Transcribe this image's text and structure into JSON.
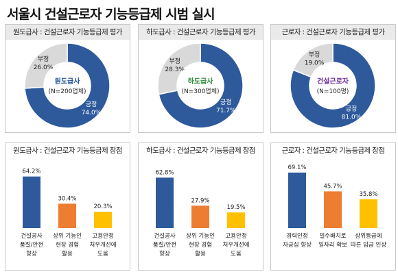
{
  "title": "서울시 건설근로자 기능등급제 시범 실시",
  "colors": {
    "positive": "#2e5a9c",
    "negative": "#d9d9d9",
    "bar_blue": "#2e5a9c",
    "bar_orange": "#ed7d31",
    "bar_yellow": "#ffc000",
    "center_label_0": "#1f4e9c",
    "center_label_1": "#2e8b3c",
    "center_label_2": "#7030a0"
  },
  "chart_data": [
    {
      "type": "pie",
      "title": "원도급사 : 건설근로자 기능등급제 평가",
      "center_label": "원도급사",
      "center_sub": "(N=200업체)",
      "slices": [
        {
          "label": "긍정",
          "value": 74.0,
          "value_label": "74.0%"
        },
        {
          "label": "부정",
          "value": 26.0,
          "value_label": "26.0%"
        }
      ]
    },
    {
      "type": "pie",
      "title": "하도급사 : 건설근로자 기능등급제 평가",
      "center_label": "하도급사",
      "center_sub": "(N=300업체)",
      "slices": [
        {
          "label": "긍정",
          "value": 71.7,
          "value_label": "71.7%"
        },
        {
          "label": "부정",
          "value": 28.3,
          "value_label": "28.3%"
        }
      ]
    },
    {
      "type": "pie",
      "title": "근로자 : 건설근로자 기능등급제 평가",
      "center_label": "건설근로자",
      "center_sub": "(N=100명)",
      "slices": [
        {
          "label": "긍정",
          "value": 81.0,
          "value_label": "81.0%"
        },
        {
          "label": "부정",
          "value": 19.0,
          "value_label": "19.0%"
        }
      ]
    },
    {
      "type": "bar",
      "title": "원도급사 : 건설근로자 기능등급제 장점",
      "categories": [
        [
          "건설공사",
          "품질/안전",
          "향상"
        ],
        [
          "상위 기능인",
          "현장 경험",
          "활용"
        ],
        [
          "고용안정",
          "처우개선에",
          "도움"
        ]
      ],
      "values": [
        64.2,
        30.4,
        20.3
      ],
      "value_labels": [
        "64.2%",
        "30.4%",
        "20.3%"
      ],
      "ylim": [
        0,
        75
      ]
    },
    {
      "type": "bar",
      "title": "하도급사 : 건설근로자 기능등급제 장점",
      "categories": [
        [
          "건설공사",
          "품질/안전",
          "향상"
        ],
        [
          "상위 기능인",
          "현장 경험",
          "활용"
        ],
        [
          "고용안정",
          "처우개선에",
          "도움"
        ]
      ],
      "values": [
        62.8,
        27.9,
        19.5
      ],
      "value_labels": [
        "62.8%",
        "27.9%",
        "19.5%"
      ],
      "ylim": [
        0,
        75
      ]
    },
    {
      "type": "bar",
      "title": "근로자 : 건설근로자 기능등급제 장점",
      "categories": [
        [
          "경력인정",
          "자긍심 향상"
        ],
        [
          "필수배치로",
          "일자리 확보"
        ],
        [
          "상위등급에",
          "따른 임금 인상"
        ]
      ],
      "values": [
        69.1,
        45.7,
        35.8
      ],
      "value_labels": [
        "69.1%",
        "45.7%",
        "35.8%"
      ],
      "ylim": [
        0,
        75
      ]
    }
  ]
}
